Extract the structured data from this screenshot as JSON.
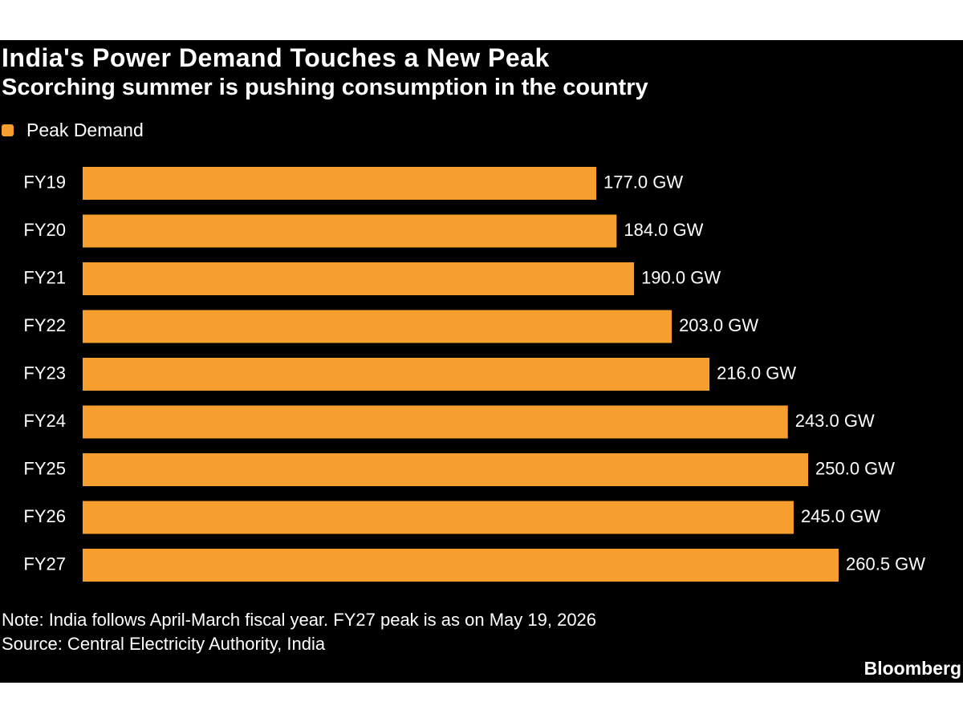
{
  "title": "India's Power Demand Touches a New Peak",
  "subtitle": "Scorching summer is pushing consumption in the country",
  "legend": {
    "label": "Peak Demand",
    "color": "#F79F2E"
  },
  "note": "Note: India follows April-March fiscal year. FY27 peak is as on May 19, 2026",
  "source": "Source: Central Electricity Authority, India",
  "logo": "Bloomberg",
  "chart_data": {
    "type": "bar",
    "orientation": "horizontal",
    "title": "India's Power Demand Touches a New Peak",
    "subtitle": "Scorching summer is pushing consumption in the country",
    "categories": [
      "FY19",
      "FY20",
      "FY21",
      "FY22",
      "FY23",
      "FY24",
      "FY25",
      "FY26",
      "FY27"
    ],
    "series": [
      {
        "name": "Peak Demand",
        "color": "#F79F2E",
        "values": [
          177.0,
          184.0,
          190.0,
          203.0,
          216.0,
          243.0,
          250.0,
          245.0,
          260.5
        ],
        "labels": [
          "177.0 GW",
          "184.0 GW",
          "190.0 GW",
          "203.0 GW",
          "216.0 GW",
          "243.0 GW",
          "250.0 GW",
          "245.0 GW",
          "260.5 GW"
        ]
      }
    ],
    "xlim": [
      0,
      260.5
    ],
    "grid": false,
    "legend_position": "top-left"
  }
}
